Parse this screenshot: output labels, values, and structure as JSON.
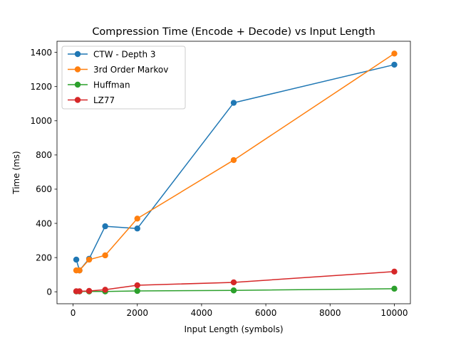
{
  "chart_data": {
    "type": "line",
    "title": "Compression Time (Encode + Decode) vs Input Length",
    "xlabel": "Input Length (symbols)",
    "ylabel": "Time (ms)",
    "xlim": [
      -500,
      10500
    ],
    "ylim": [
      -70,
      1465
    ],
    "xticks": [
      0,
      2000,
      4000,
      6000,
      8000,
      10000
    ],
    "yticks": [
      0,
      200,
      400,
      600,
      800,
      1000,
      1200,
      1400
    ],
    "grid": false,
    "legend_position": "top-left",
    "x": [
      100,
      200,
      500,
      1000,
      2000,
      5000,
      10000
    ],
    "series": [
      {
        "name": "CTW - Depth 3",
        "color": "#1f77b4",
        "values": [
          188,
          125,
          193,
          383,
          370,
          1105,
          1328
        ]
      },
      {
        "name": "3rd Order Markov",
        "color": "#ff7f0e",
        "values": [
          125,
          125,
          188,
          213,
          428,
          770,
          1393
        ]
      },
      {
        "name": "Huffman",
        "color": "#2ca02c",
        "values": [
          2,
          2,
          2,
          2,
          5,
          8,
          18
        ]
      },
      {
        "name": "LZ77",
        "color": "#d62728",
        "values": [
          3,
          3,
          5,
          12,
          38,
          55,
          118
        ]
      }
    ]
  }
}
